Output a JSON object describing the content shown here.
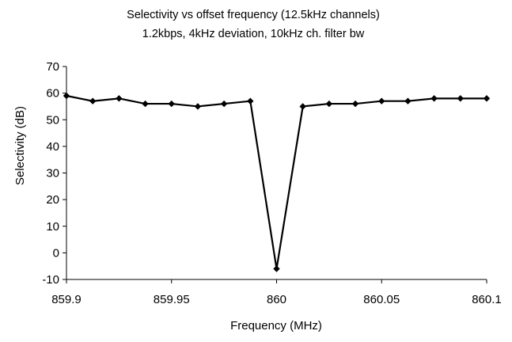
{
  "chart_data": {
    "type": "line",
    "title": "Selectivity vs offset frequency (12.5kHz channels)",
    "subtitle": "1.2kbps, 4kHz deviation, 10kHz ch. filter bw",
    "xlabel": "Frequency (MHz)",
    "ylabel": "Selectivity (dB)",
    "xlim": [
      859.9,
      860.1
    ],
    "ylim": [
      -10,
      70
    ],
    "x_ticks": [
      "859.9",
      "859.95",
      "860",
      "860.05",
      "860.1"
    ],
    "x_tick_values": [
      859.9,
      859.95,
      860.0,
      860.05,
      860.1
    ],
    "y_ticks": [
      "-10",
      "0",
      "10",
      "20",
      "30",
      "40",
      "50",
      "60",
      "70"
    ],
    "y_tick_values": [
      -10,
      0,
      10,
      20,
      30,
      40,
      50,
      60,
      70
    ],
    "grid": false,
    "legend": false,
    "marker": "diamond",
    "line_color": "#000000",
    "series": [
      {
        "x": [
          859.9,
          859.9125,
          859.925,
          859.9375,
          859.95,
          859.9625,
          859.975,
          859.9875,
          860.0,
          860.0125,
          860.025,
          860.0375,
          860.05,
          860.0625,
          860.075,
          860.0875,
          860.1
        ],
        "y": [
          59,
          57,
          58,
          56,
          56,
          55,
          56,
          57,
          -6,
          55,
          56,
          56,
          57,
          57,
          58,
          58,
          58
        ]
      }
    ]
  }
}
